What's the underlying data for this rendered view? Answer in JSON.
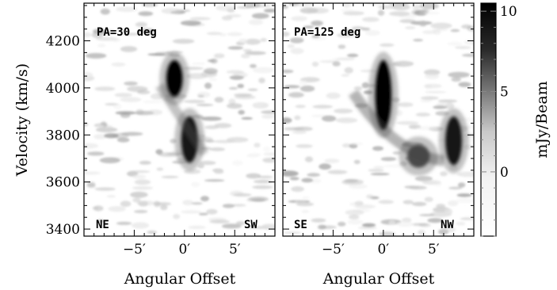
{
  "chart_data": {
    "type": "heatmap",
    "ylabel": "Velocity (km/s)",
    "xlabel": "Angular Offset",
    "colorbar": {
      "label": "mJy/Beam",
      "ticks": [
        10,
        5,
        0
      ],
      "range": [
        -4,
        10.5
      ],
      "colormap": "grayscale, white = low, black = high"
    },
    "yticks": [
      "4200",
      "4000",
      "3800",
      "3600",
      "3400"
    ],
    "ylim": [
      3370,
      4360
    ],
    "xlim": [
      -10,
      9
    ],
    "panels": [
      {
        "title": "PA=30 deg",
        "left_label": "NE",
        "right_label": "SW",
        "xticks": [
          "−5′",
          "0′",
          "5′"
        ],
        "features": [
          {
            "offset": -1.0,
            "velocity_range": [
              3960,
              4120
            ],
            "peak_mJy": 10
          },
          {
            "offset": 0.5,
            "velocity_range": [
              3680,
              3880
            ],
            "peak_mJy": 9
          }
        ]
      },
      {
        "title": "PA=125 deg",
        "left_label": "SE",
        "right_label": "NW",
        "xticks": [
          "−5′",
          "0′",
          "5′"
        ],
        "features": [
          {
            "offset": 0.0,
            "velocity_range": [
              3820,
              4120
            ],
            "peak_mJy": 10
          },
          {
            "offset": 3.5,
            "velocity_range": [
              3660,
              3760
            ],
            "peak_mJy": 7
          },
          {
            "offset": 7.0,
            "velocity_range": [
              3670,
              3880
            ],
            "peak_mJy": 9
          }
        ]
      }
    ]
  }
}
